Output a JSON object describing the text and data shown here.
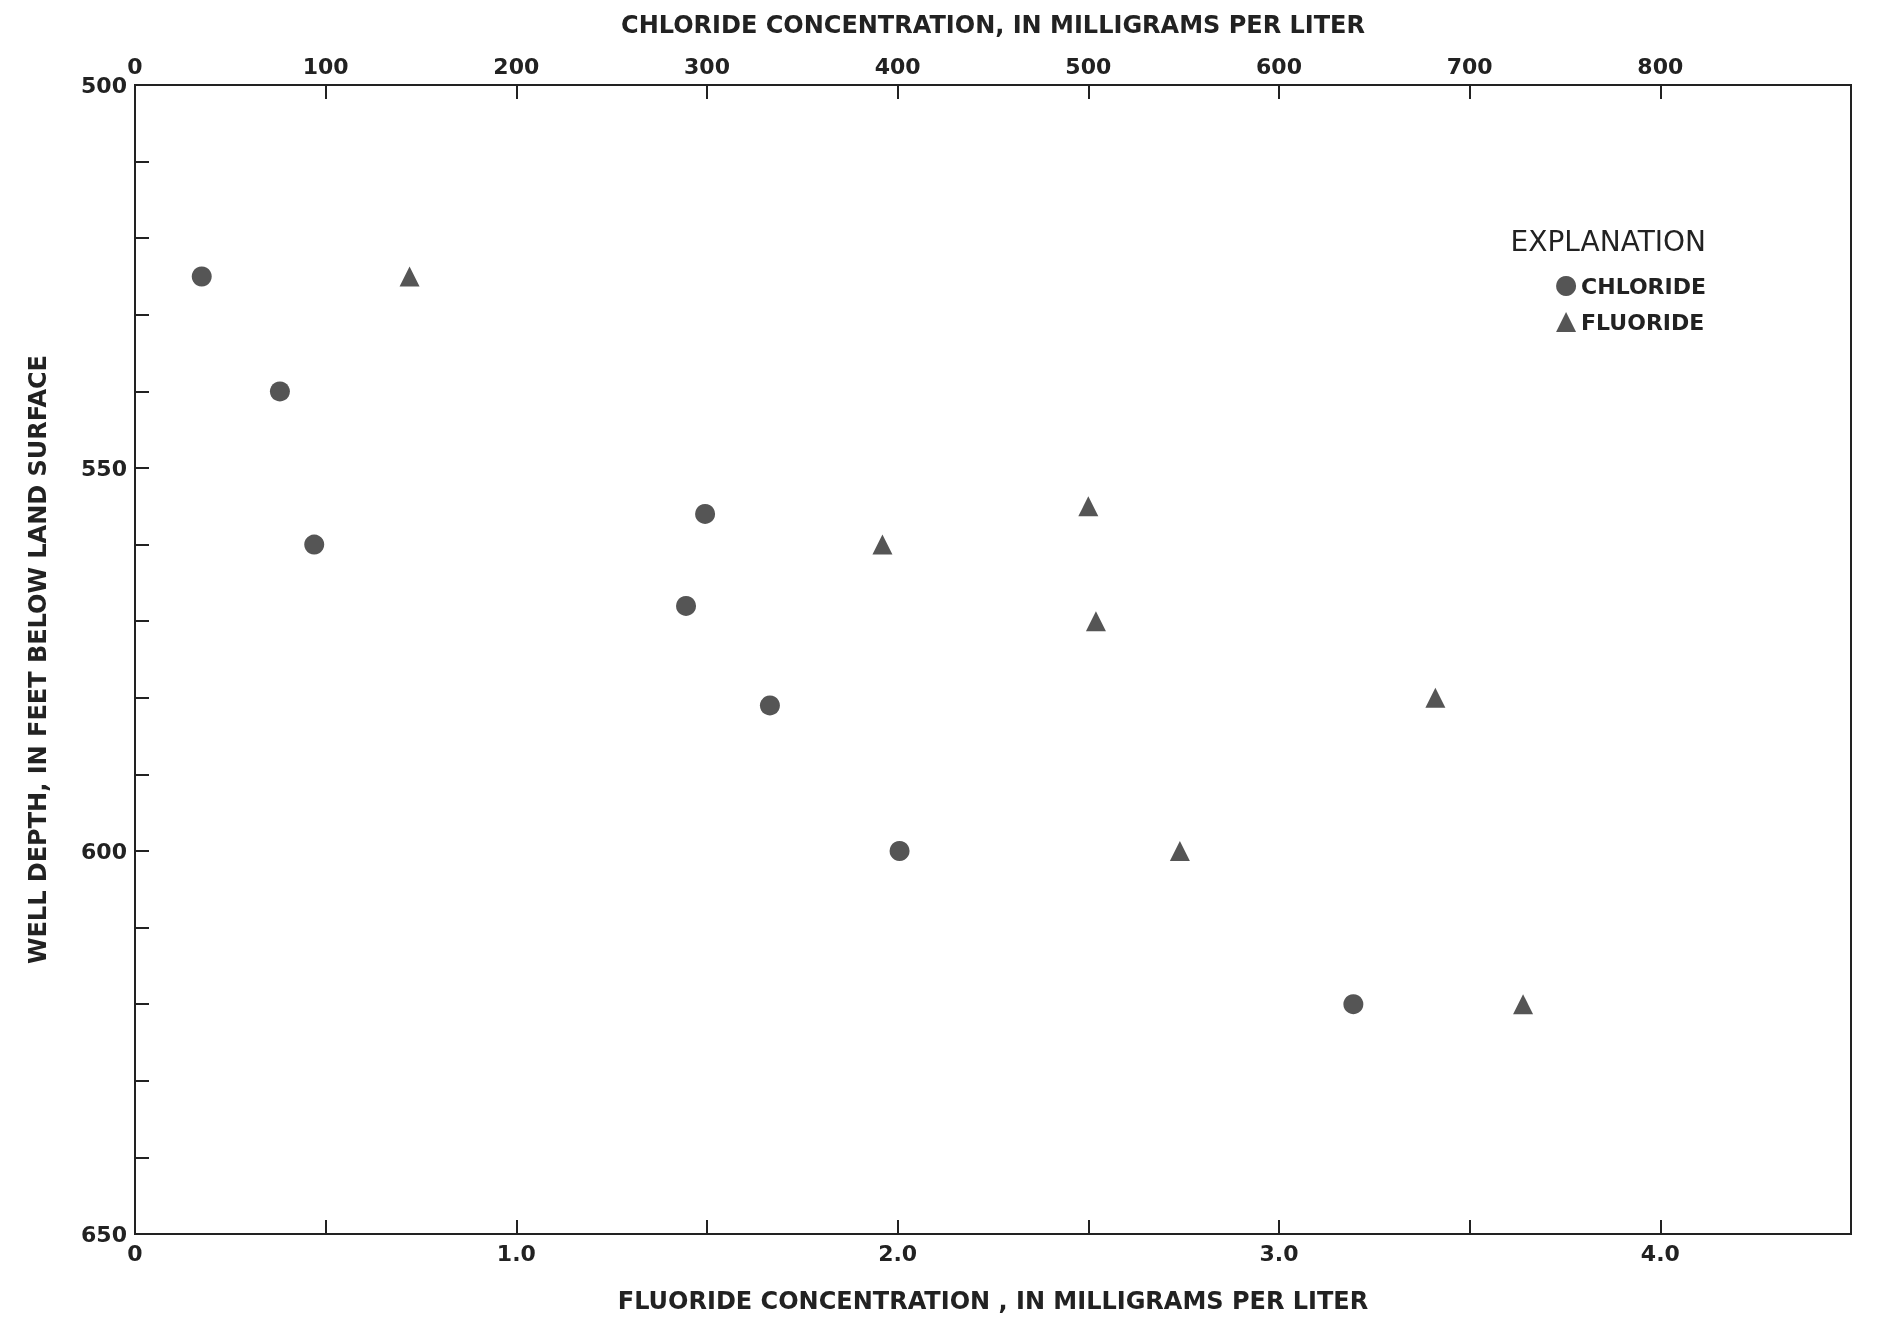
{
  "chart_data": {
    "type": "scatter",
    "xlabel": "FLUORIDE CONCENTRATION , IN MILLIGRAMS PER LITER",
    "x2label": "CHLORIDE CONCENTRATION, IN MILLIGRAMS PER LITER",
    "ylabel": "WELL DEPTH, IN FEET BELOW LAND SURFACE",
    "legend_title": "EXPLANATION",
    "legend": "top right",
    "grid": false,
    "xlim": [
      0,
      4.5
    ],
    "xticks": [
      0,
      {
        "value": 0.5,
        "label": null
      },
      {
        "value": 1,
        "label": "1.0"
      },
      {
        "value": 1.5,
        "label": null
      },
      {
        "value": 2,
        "label": "2.0"
      },
      {
        "value": 2.5,
        "label": null
      },
      {
        "value": 3,
        "label": "3.0"
      },
      {
        "value": 3.5,
        "label": null
      },
      {
        "value": 4,
        "label": "4.0"
      }
    ],
    "x2lim": [
      0,
      900
    ],
    "x2ticks": [
      0,
      100,
      200,
      300,
      400,
      500,
      600,
      700,
      800
    ],
    "ylim": [
      650,
      500
    ],
    "yticks": [
      500,
      {
        "value": 510,
        "label": null
      },
      {
        "value": 520,
        "label": null
      },
      {
        "value": 530,
        "label": null
      },
      {
        "value": 540,
        "label": null
      },
      550,
      {
        "value": 560,
        "label": null
      },
      {
        "value": 570,
        "label": null
      },
      {
        "value": 580,
        "label": null
      },
      {
        "value": 590,
        "label": null
      },
      600,
      {
        "value": 610,
        "label": null
      },
      {
        "value": 620,
        "label": null
      },
      {
        "value": 630,
        "label": null
      },
      {
        "value": 640,
        "label": null
      },
      650
    ],
    "series": [
      {
        "name": "CHLORIDE",
        "color": "#2b2b2b",
        "marker": "circle",
        "axis": "x2",
        "x": [
          35,
          76,
          94,
          299,
          289,
          333,
          401,
          639
        ],
        "values": [
          525,
          540,
          560,
          556,
          568,
          581,
          600,
          620
        ]
      },
      {
        "name": "FLUORIDE",
        "color": "#2b2b2b",
        "marker": "triangle",
        "x": [
          0.72,
          1.96,
          2.5,
          2.52,
          3.41,
          2.74,
          3.64
        ],
        "values": [
          525,
          560,
          555,
          570,
          580,
          600,
          620
        ]
      }
    ]
  }
}
